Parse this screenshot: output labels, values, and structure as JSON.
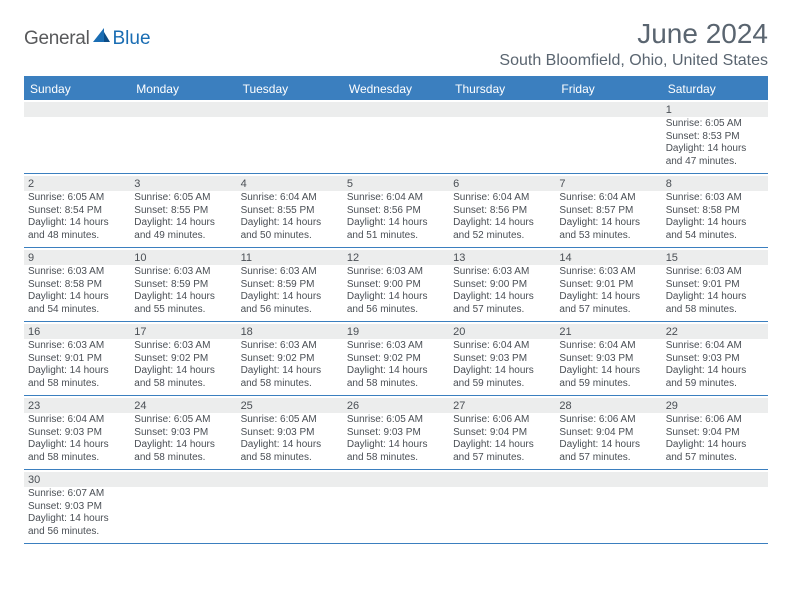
{
  "logo": {
    "general": "General",
    "blue": "Blue"
  },
  "title": "June 2024",
  "location": "South Bloomfield, Ohio, United States",
  "day_headers": [
    "Sunday",
    "Monday",
    "Tuesday",
    "Wednesday",
    "Thursday",
    "Friday",
    "Saturday"
  ],
  "colors": {
    "header_bg": "#3b7fbf",
    "header_text": "#ffffff",
    "gray_bg": "#eceded",
    "text": "#4a4f55",
    "title_text": "#5a6570",
    "logo_gray": "#58595b",
    "logo_blue": "#1a6db3"
  },
  "weeks": [
    [
      {
        "day": "",
        "lines": []
      },
      {
        "day": "",
        "lines": []
      },
      {
        "day": "",
        "lines": []
      },
      {
        "day": "",
        "lines": []
      },
      {
        "day": "",
        "lines": []
      },
      {
        "day": "",
        "lines": []
      },
      {
        "day": "1",
        "lines": [
          "Sunrise: 6:05 AM",
          "Sunset: 8:53 PM",
          "Daylight: 14 hours",
          "and 47 minutes."
        ]
      }
    ],
    [
      {
        "day": "2",
        "lines": [
          "Sunrise: 6:05 AM",
          "Sunset: 8:54 PM",
          "Daylight: 14 hours",
          "and 48 minutes."
        ]
      },
      {
        "day": "3",
        "lines": [
          "Sunrise: 6:05 AM",
          "Sunset: 8:55 PM",
          "Daylight: 14 hours",
          "and 49 minutes."
        ]
      },
      {
        "day": "4",
        "lines": [
          "Sunrise: 6:04 AM",
          "Sunset: 8:55 PM",
          "Daylight: 14 hours",
          "and 50 minutes."
        ]
      },
      {
        "day": "5",
        "lines": [
          "Sunrise: 6:04 AM",
          "Sunset: 8:56 PM",
          "Daylight: 14 hours",
          "and 51 minutes."
        ]
      },
      {
        "day": "6",
        "lines": [
          "Sunrise: 6:04 AM",
          "Sunset: 8:56 PM",
          "Daylight: 14 hours",
          "and 52 minutes."
        ]
      },
      {
        "day": "7",
        "lines": [
          "Sunrise: 6:04 AM",
          "Sunset: 8:57 PM",
          "Daylight: 14 hours",
          "and 53 minutes."
        ]
      },
      {
        "day": "8",
        "lines": [
          "Sunrise: 6:03 AM",
          "Sunset: 8:58 PM",
          "Daylight: 14 hours",
          "and 54 minutes."
        ]
      }
    ],
    [
      {
        "day": "9",
        "lines": [
          "Sunrise: 6:03 AM",
          "Sunset: 8:58 PM",
          "Daylight: 14 hours",
          "and 54 minutes."
        ]
      },
      {
        "day": "10",
        "lines": [
          "Sunrise: 6:03 AM",
          "Sunset: 8:59 PM",
          "Daylight: 14 hours",
          "and 55 minutes."
        ]
      },
      {
        "day": "11",
        "lines": [
          "Sunrise: 6:03 AM",
          "Sunset: 8:59 PM",
          "Daylight: 14 hours",
          "and 56 minutes."
        ]
      },
      {
        "day": "12",
        "lines": [
          "Sunrise: 6:03 AM",
          "Sunset: 9:00 PM",
          "Daylight: 14 hours",
          "and 56 minutes."
        ]
      },
      {
        "day": "13",
        "lines": [
          "Sunrise: 6:03 AM",
          "Sunset: 9:00 PM",
          "Daylight: 14 hours",
          "and 57 minutes."
        ]
      },
      {
        "day": "14",
        "lines": [
          "Sunrise: 6:03 AM",
          "Sunset: 9:01 PM",
          "Daylight: 14 hours",
          "and 57 minutes."
        ]
      },
      {
        "day": "15",
        "lines": [
          "Sunrise: 6:03 AM",
          "Sunset: 9:01 PM",
          "Daylight: 14 hours",
          "and 58 minutes."
        ]
      }
    ],
    [
      {
        "day": "16",
        "lines": [
          "Sunrise: 6:03 AM",
          "Sunset: 9:01 PM",
          "Daylight: 14 hours",
          "and 58 minutes."
        ]
      },
      {
        "day": "17",
        "lines": [
          "Sunrise: 6:03 AM",
          "Sunset: 9:02 PM",
          "Daylight: 14 hours",
          "and 58 minutes."
        ]
      },
      {
        "day": "18",
        "lines": [
          "Sunrise: 6:03 AM",
          "Sunset: 9:02 PM",
          "Daylight: 14 hours",
          "and 58 minutes."
        ]
      },
      {
        "day": "19",
        "lines": [
          "Sunrise: 6:03 AM",
          "Sunset: 9:02 PM",
          "Daylight: 14 hours",
          "and 58 minutes."
        ]
      },
      {
        "day": "20",
        "lines": [
          "Sunrise: 6:04 AM",
          "Sunset: 9:03 PM",
          "Daylight: 14 hours",
          "and 59 minutes."
        ]
      },
      {
        "day": "21",
        "lines": [
          "Sunrise: 6:04 AM",
          "Sunset: 9:03 PM",
          "Daylight: 14 hours",
          "and 59 minutes."
        ]
      },
      {
        "day": "22",
        "lines": [
          "Sunrise: 6:04 AM",
          "Sunset: 9:03 PM",
          "Daylight: 14 hours",
          "and 59 minutes."
        ]
      }
    ],
    [
      {
        "day": "23",
        "lines": [
          "Sunrise: 6:04 AM",
          "Sunset: 9:03 PM",
          "Daylight: 14 hours",
          "and 58 minutes."
        ]
      },
      {
        "day": "24",
        "lines": [
          "Sunrise: 6:05 AM",
          "Sunset: 9:03 PM",
          "Daylight: 14 hours",
          "and 58 minutes."
        ]
      },
      {
        "day": "25",
        "lines": [
          "Sunrise: 6:05 AM",
          "Sunset: 9:03 PM",
          "Daylight: 14 hours",
          "and 58 minutes."
        ]
      },
      {
        "day": "26",
        "lines": [
          "Sunrise: 6:05 AM",
          "Sunset: 9:03 PM",
          "Daylight: 14 hours",
          "and 58 minutes."
        ]
      },
      {
        "day": "27",
        "lines": [
          "Sunrise: 6:06 AM",
          "Sunset: 9:04 PM",
          "Daylight: 14 hours",
          "and 57 minutes."
        ]
      },
      {
        "day": "28",
        "lines": [
          "Sunrise: 6:06 AM",
          "Sunset: 9:04 PM",
          "Daylight: 14 hours",
          "and 57 minutes."
        ]
      },
      {
        "day": "29",
        "lines": [
          "Sunrise: 6:06 AM",
          "Sunset: 9:04 PM",
          "Daylight: 14 hours",
          "and 57 minutes."
        ]
      }
    ],
    [
      {
        "day": "30",
        "lines": [
          "Sunrise: 6:07 AM",
          "Sunset: 9:03 PM",
          "Daylight: 14 hours",
          "and 56 minutes."
        ]
      },
      {
        "day": "",
        "lines": []
      },
      {
        "day": "",
        "lines": []
      },
      {
        "day": "",
        "lines": []
      },
      {
        "day": "",
        "lines": []
      },
      {
        "day": "",
        "lines": []
      },
      {
        "day": "",
        "lines": []
      }
    ]
  ]
}
